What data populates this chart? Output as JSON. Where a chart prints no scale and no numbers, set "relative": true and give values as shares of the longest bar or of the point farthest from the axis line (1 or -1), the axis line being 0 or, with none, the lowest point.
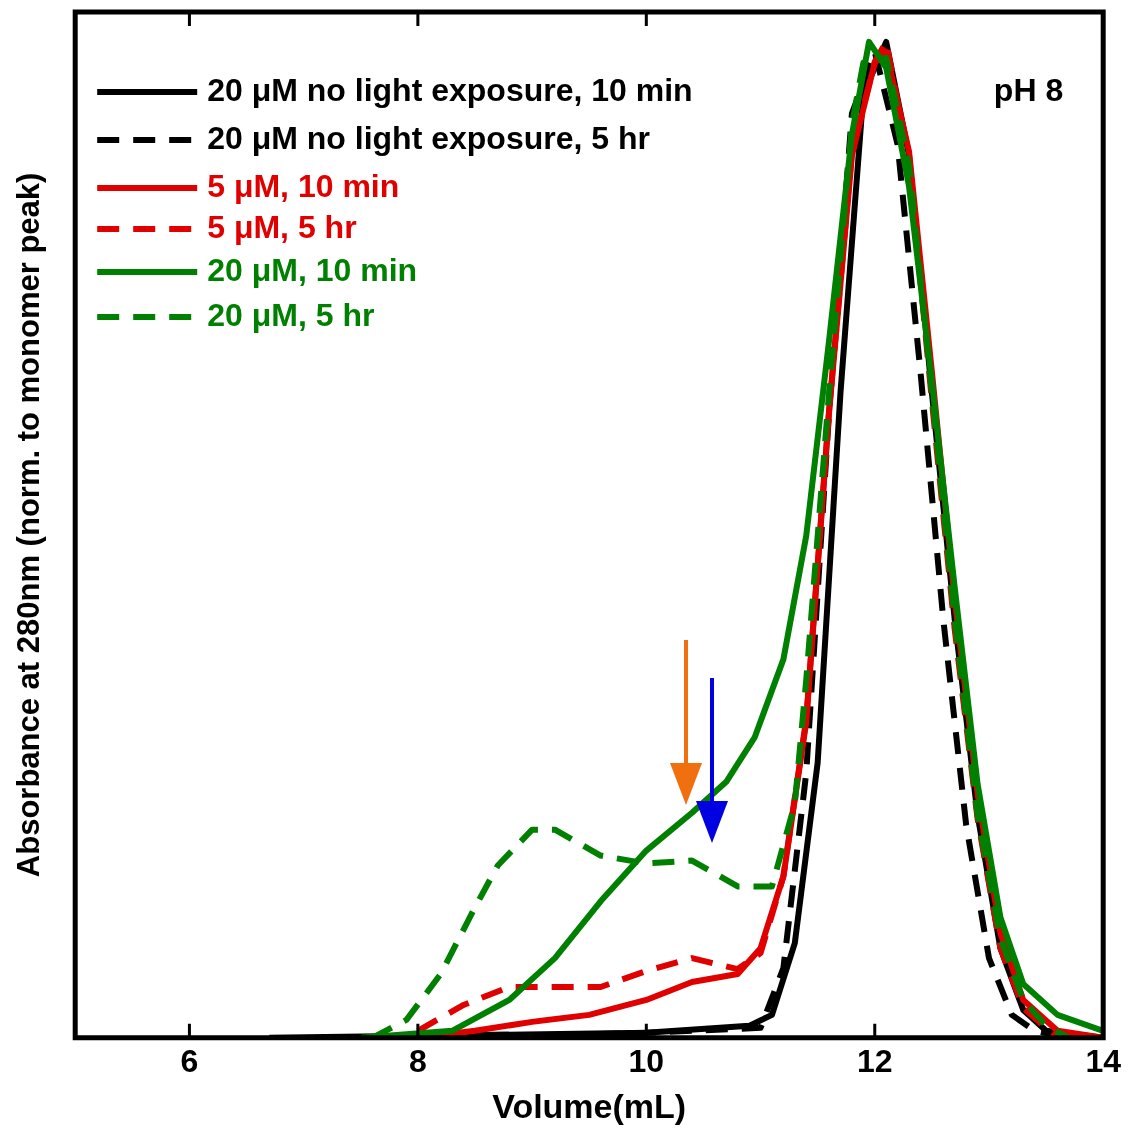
{
  "chart_data": {
    "type": "line",
    "xlabel": "Volume(mL)",
    "ylabel": "Absorbance at 280nm (norm. to monomer peak)",
    "relative": true,
    "xlim": [
      5,
      14
    ],
    "xticks": [
      6,
      8,
      10,
      12,
      14
    ],
    "legend": "top left",
    "grid": false,
    "marker": "none",
    "annotations": [
      "pH 8"
    ],
    "series": [
      {
        "name": "20 μM no light exposure, 10 min",
        "color": "#000000",
        "line_style": "solid",
        "x": [
          6.7,
          10,
          10.9,
          11.1,
          11.3,
          11.5,
          11.7,
          11.9,
          12.1,
          12.3,
          12.5,
          12.7,
          12.9,
          13.1,
          13.3,
          13.5,
          14
        ],
        "values": [
          0,
          0.005,
          0.012,
          0.023,
          0.095,
          0.276,
          0.648,
          0.948,
          1,
          0.886,
          0.648,
          0.42,
          0.224,
          0.09,
          0.028,
          0.007,
          0
        ]
      },
      {
        "name": "20 μM no light exposure, 5 hr",
        "color": "#000000",
        "line_style": "dashed",
        "x": [
          8,
          10,
          11,
          11.2,
          11.4,
          11.6,
          11.8,
          12,
          12.2,
          12.4,
          12.6,
          12.8,
          13,
          13.2,
          13.4,
          13.7
        ],
        "values": [
          0,
          0.005,
          0.01,
          0.07,
          0.266,
          0.628,
          0.928,
          0.99,
          0.897,
          0.669,
          0.42,
          0.214,
          0.08,
          0.023,
          0.007,
          0
        ]
      },
      {
        "name": "5 μM, 10 min",
        "color": "#e00000",
        "line_style": "solid",
        "x": [
          8,
          8.5,
          9,
          9.5,
          10,
          10.4,
          10.8,
          11,
          11.2,
          11.4,
          11.6,
          11.8,
          12,
          12.1,
          12.3,
          12.5,
          12.7,
          12.9,
          13.1,
          13.3,
          13.6,
          14
        ],
        "values": [
          0,
          0.007,
          0.016,
          0.023,
          0.038,
          0.056,
          0.064,
          0.09,
          0.162,
          0.317,
          0.628,
          0.886,
          0.979,
          0.99,
          0.89,
          0.669,
          0.44,
          0.245,
          0.105,
          0.038,
          0.007,
          0
        ]
      },
      {
        "name": "5 μM, 5 hr",
        "color": "#e00000",
        "line_style": "dashed",
        "x": [
          8,
          8.4,
          8.8,
          9.2,
          9.6,
          10,
          10.4,
          10.8,
          11,
          11.2,
          11.4,
          11.6,
          11.8,
          12,
          12.1,
          12.3,
          12.5,
          12.7,
          12.9,
          13.1,
          13.3,
          13.6
        ],
        "values": [
          0.007,
          0.033,
          0.051,
          0.051,
          0.051,
          0.067,
          0.08,
          0.069,
          0.085,
          0.162,
          0.32,
          0.63,
          0.89,
          0.98,
          1,
          0.88,
          0.64,
          0.41,
          0.22,
          0.09,
          0.03,
          0
        ]
      },
      {
        "name": "20 μM, 10 min",
        "color": "#008000",
        "line_style": "solid",
        "x": [
          7.5,
          8.3,
          8.8,
          9.2,
          9.6,
          10,
          10.4,
          10.7,
          10.95,
          11.2,
          11.4,
          11.6,
          11.8,
          11.95,
          12.1,
          12.3,
          12.5,
          12.7,
          12.9,
          13.1,
          13.3,
          13.6,
          14
        ],
        "values": [
          0,
          0.007,
          0.038,
          0.08,
          0.137,
          0.188,
          0.226,
          0.257,
          0.302,
          0.38,
          0.504,
          0.7,
          0.907,
          1,
          0.974,
          0.855,
          0.659,
          0.452,
          0.255,
          0.121,
          0.054,
          0.023,
          0.007
        ]
      },
      {
        "name": "20 μM, 5 hr",
        "color": "#008000",
        "line_style": "dashed",
        "x": [
          7.6,
          7.9,
          8.2,
          8.5,
          8.7,
          9,
          9.2,
          9.6,
          10,
          10.4,
          10.8,
          11.1,
          11.3,
          11.4,
          11.6,
          11.8,
          11.9,
          12.1,
          12.3,
          12.5,
          12.7,
          12.9,
          13.1,
          13.3,
          13.5,
          13.7
        ],
        "values": [
          0,
          0.018,
          0.064,
          0.131,
          0.173,
          0.209,
          0.209,
          0.183,
          0.175,
          0.178,
          0.152,
          0.152,
          0.235,
          0.359,
          0.648,
          0.917,
          0.979,
          0.984,
          0.876,
          0.648,
          0.42,
          0.224,
          0.1,
          0.038,
          0.012,
          0
        ]
      }
    ]
  }
}
